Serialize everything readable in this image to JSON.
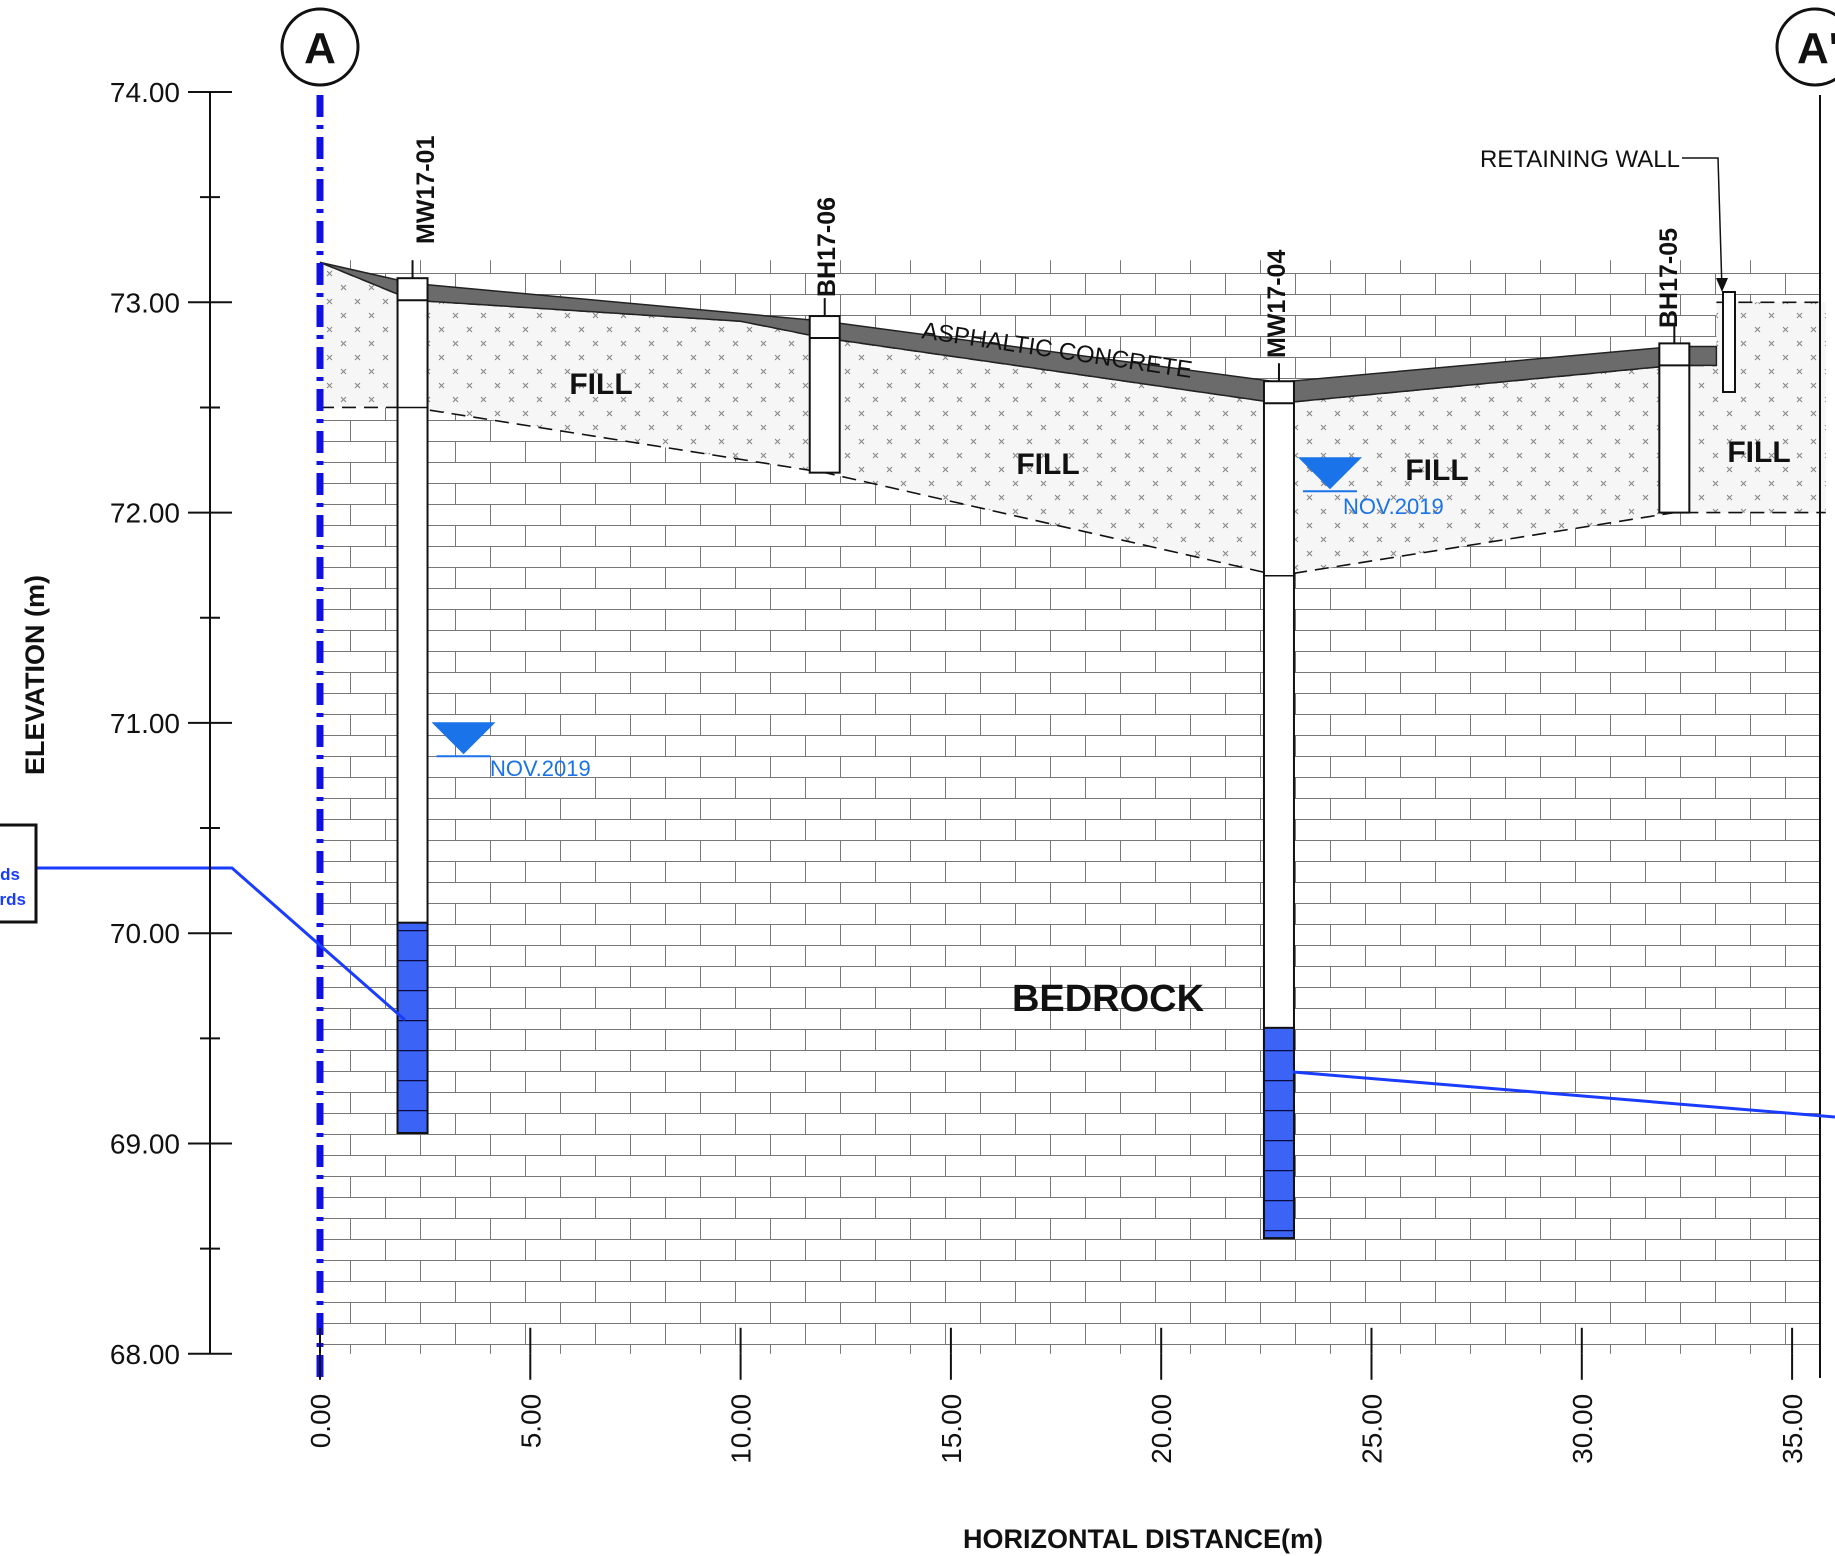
{
  "section": {
    "start_marker": "A",
    "end_marker": "A'",
    "x_axis_title": "HORIZONTAL DISTANCE(m)",
    "y_axis_title": "ELEVATION (m)",
    "x_ticks": [
      "0.00",
      "5.00",
      "10.00",
      "15.00",
      "20.00",
      "25.00",
      "30.00",
      "35.00"
    ],
    "y_ticks": [
      "74.00",
      "73.00",
      "72.00",
      "71.00",
      "70.00",
      "69.00",
      "68.00"
    ],
    "legend_fragments": [
      "ds",
      "rds"
    ]
  },
  "boreholes": [
    {
      "id": "MW17-01",
      "chainage_m": 2.2,
      "ground_el": 73.01,
      "fill_bottom_el": 72.5,
      "bottom_el": 69.05,
      "screen_top_el": 70.05,
      "type": "monitoring well"
    },
    {
      "id": "BH17-06",
      "chainage_m": 12.0,
      "ground_el": 72.83,
      "fill_bottom_el": 72.19,
      "bottom_el": 72.19,
      "type": "borehole"
    },
    {
      "id": "MW17-04",
      "chainage_m": 22.8,
      "ground_el": 72.52,
      "fill_bottom_el": 71.7,
      "bottom_el": 68.55,
      "screen_top_el": 69.55,
      "type": "monitoring well"
    },
    {
      "id": "BH17-05",
      "chainage_m": 32.2,
      "ground_el": 72.7,
      "fill_bottom_el": 72.0,
      "bottom_el": 72.0,
      "type": "borehole"
    }
  ],
  "layers": {
    "surface": "ASPHALTIC CONCRETE",
    "fill": "FILL",
    "bedrock": "BEDROCK"
  },
  "water_levels": [
    {
      "borehole": "MW17-01",
      "elevation": 70.87,
      "label": "NOV.2019"
    },
    {
      "borehole": "MW17-04",
      "elevation": 72.13,
      "label": "NOV.2019"
    }
  ],
  "annotations": {
    "retaining_wall": "RETAINING WALL"
  },
  "colors": {
    "asphalt": "#6b6b6b",
    "fill_bg": "#f6f6f6",
    "water": "#1a73e8",
    "screen": "#3b63f5",
    "section_line": "#1010e0"
  }
}
